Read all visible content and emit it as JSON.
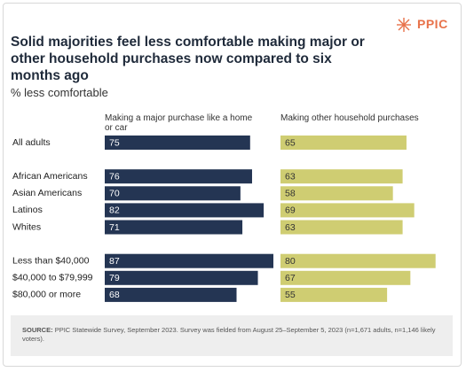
{
  "logo": "PPIC",
  "chart_data": {
    "type": "bar",
    "orientation": "horizontal",
    "title": "Solid majorities feel less comfortable making major or other household purchases now compared to six months ago",
    "subtitle": "% less comfortable",
    "categories": [
      "All adults",
      null,
      "African Americans",
      "Asian Americans",
      "Latinos",
      "Whites",
      null,
      "Less than $40,000",
      "$40,000 to $79,999",
      "$80,000 or more"
    ],
    "series": [
      {
        "name": "Making a major purchase like a home or car",
        "color": "#243553",
        "values": [
          75,
          null,
          76,
          70,
          82,
          71,
          null,
          87,
          79,
          68
        ]
      },
      {
        "name": "Making other household purchases",
        "color": "#cfcd72",
        "values": [
          65,
          null,
          63,
          58,
          69,
          63,
          null,
          80,
          67,
          55
        ]
      }
    ]
  },
  "source": {
    "label": "SOURCE:",
    "text": "PPIC Statewide Survey, September 2023. Survey was fielded from August 25–September 5, 2023 (n=1,671 adults, n=1,146 likely voters)."
  }
}
